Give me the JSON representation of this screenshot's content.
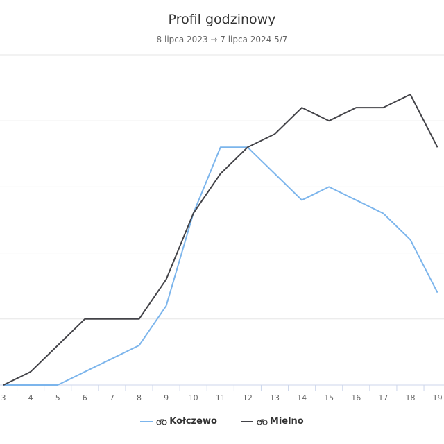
{
  "chart_data": {
    "type": "line",
    "title": "Profil godzinowy",
    "subtitle": "8 lipca 2023 → 7 lipca 2024 5/7",
    "categories": [
      "3",
      "4",
      "5",
      "6",
      "7",
      "8",
      "9",
      "10",
      "11",
      "12",
      "13",
      "14",
      "15",
      "16",
      "17",
      "18",
      "19"
    ],
    "xlabel": "",
    "ylabel": "",
    "ylim": [
      0,
      25
    ],
    "grid": true,
    "legend_position": "bottom",
    "series": [
      {
        "name": "Kołczewo",
        "color": "#7cb5ec",
        "values": [
          0,
          0,
          0,
          1,
          2,
          3,
          6,
          13,
          18,
          18,
          16,
          14,
          15,
          14,
          13,
          11,
          7
        ]
      },
      {
        "name": "Mielno",
        "color": "#434348",
        "values": [
          0,
          1,
          3,
          5,
          5,
          5,
          8,
          13,
          16,
          18,
          19,
          21,
          20,
          21,
          21,
          22,
          18
        ]
      }
    ]
  }
}
